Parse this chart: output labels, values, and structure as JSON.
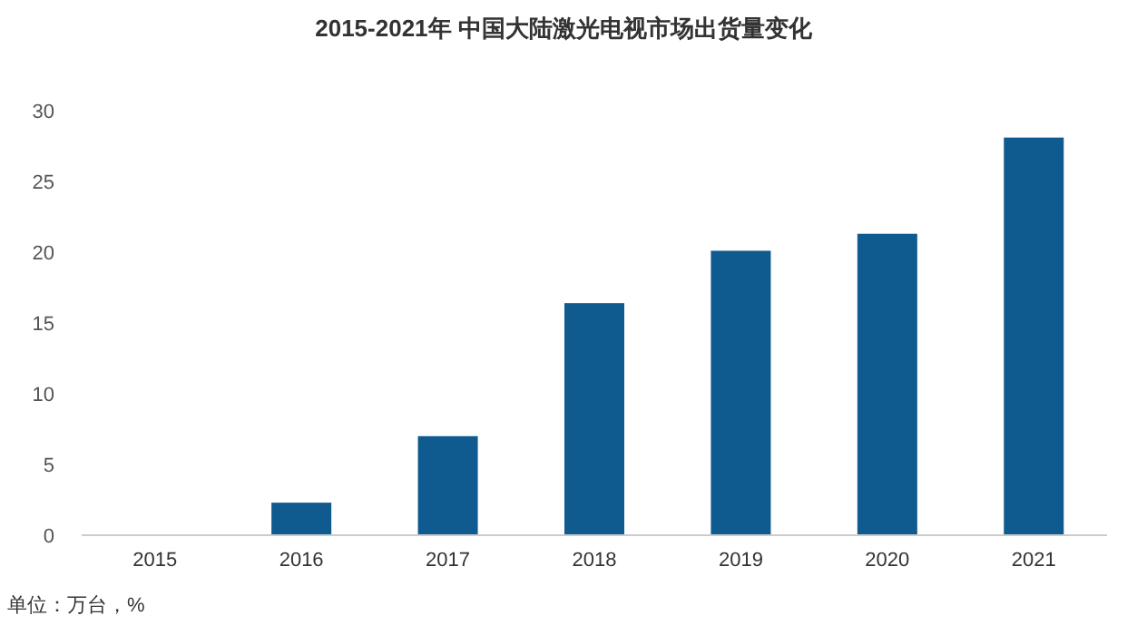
{
  "chart_data": {
    "type": "bar",
    "title": "2015-2021年 中国大陆激光电视市场出货量变化",
    "categories": [
      "2015",
      "2016",
      "2017",
      "2018",
      "2019",
      "2020",
      "2021"
    ],
    "values": [
      0,
      2.3,
      7.0,
      16.4,
      20.1,
      21.3,
      28.1
    ],
    "color": "#0f5a8f",
    "ylim": [
      0,
      30
    ],
    "yticks": [
      0,
      5,
      10,
      15,
      20,
      25,
      30
    ],
    "grid": false,
    "annotations": [
      "单位：万台，%"
    ]
  }
}
